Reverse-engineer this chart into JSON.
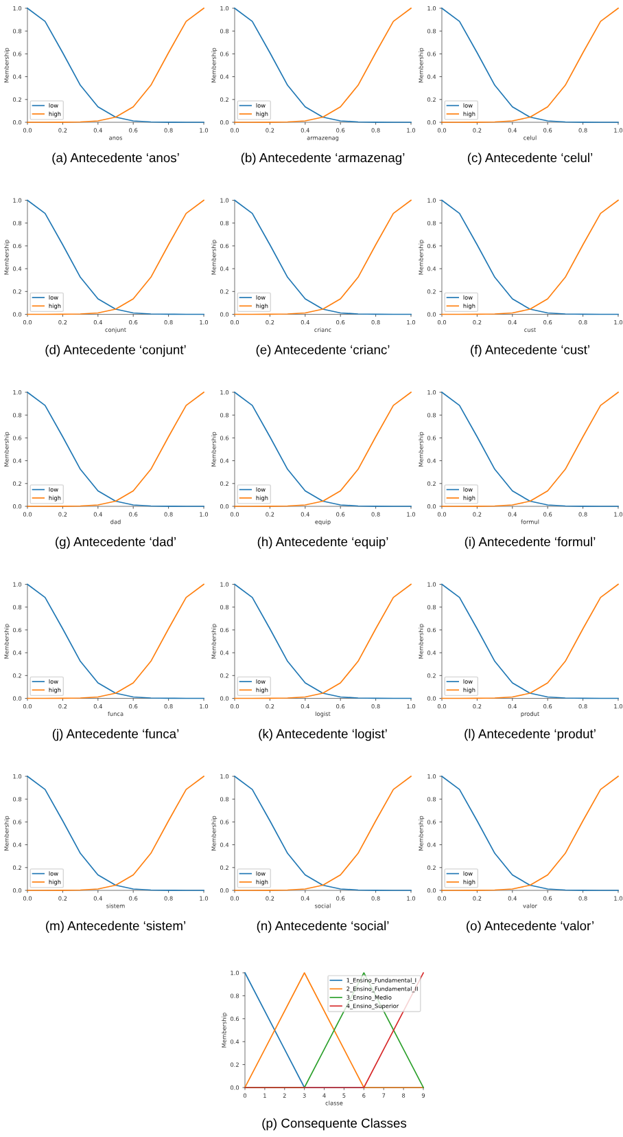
{
  "chart_data": [
    {
      "type": "line",
      "title": "(a) Antecedente ‘anos’",
      "xlabel": "anos",
      "ylabel": "Membership",
      "x": [
        0,
        0.1,
        0.2,
        0.3,
        0.4,
        0.5,
        0.6,
        0.7,
        0.8,
        0.9,
        1.0
      ],
      "xlim": [
        0,
        1
      ],
      "ylim": [
        0,
        1
      ],
      "xticks": [
        {
          "value": 0,
          "label": "0.0"
        },
        {
          "value": 0.2,
          "label": "0.2"
        },
        {
          "value": 0.4,
          "label": "0.4"
        },
        {
          "value": 0.6,
          "label": "0.6"
        },
        {
          "value": 0.8,
          "label": "0.8"
        },
        {
          "value": 1,
          "label": "1.0"
        }
      ],
      "yticks": [
        {
          "value": 0,
          "label": "0.0"
        },
        {
          "value": 0.2,
          "label": "0.2"
        },
        {
          "value": 0.4,
          "label": "0.4"
        },
        {
          "value": 0.6,
          "label": "0.6"
        },
        {
          "value": 0.8,
          "label": "0.8"
        },
        {
          "value": 1,
          "label": "1.0"
        }
      ],
      "legend": "bottom left",
      "grid": false,
      "series": [
        {
          "name": "low",
          "color": "#1f77b4",
          "values": [
            1.0,
            0.885,
            0.61,
            0.325,
            0.135,
            0.045,
            0.012,
            0.003,
            0.001,
            0,
            0
          ]
        },
        {
          "name": "high",
          "color": "#ff7f0e",
          "values": [
            0,
            0,
            0.001,
            0.003,
            0.012,
            0.045,
            0.135,
            0.325,
            0.61,
            0.885,
            1.0
          ]
        }
      ]
    },
    {
      "type": "line",
      "title": "(b) Antecedente ‘armazenag’",
      "xlabel": "armazenag",
      "ylabel": "Membership",
      "x": [
        0,
        0.1,
        0.2,
        0.3,
        0.4,
        0.5,
        0.6,
        0.7,
        0.8,
        0.9,
        1.0
      ],
      "xlim": [
        0,
        1
      ],
      "ylim": [
        0,
        1
      ],
      "xticks": [
        {
          "value": 0,
          "label": "0.0"
        },
        {
          "value": 0.2,
          "label": "0.2"
        },
        {
          "value": 0.4,
          "label": "0.4"
        },
        {
          "value": 0.6,
          "label": "0.6"
        },
        {
          "value": 0.8,
          "label": "0.8"
        },
        {
          "value": 1,
          "label": "1.0"
        }
      ],
      "yticks": [
        {
          "value": 0,
          "label": "0.0"
        },
        {
          "value": 0.2,
          "label": "0.2"
        },
        {
          "value": 0.4,
          "label": "0.4"
        },
        {
          "value": 0.6,
          "label": "0.6"
        },
        {
          "value": 0.8,
          "label": "0.8"
        },
        {
          "value": 1,
          "label": "1.0"
        }
      ],
      "legend": "bottom left",
      "grid": false,
      "series": [
        {
          "name": "low",
          "color": "#1f77b4",
          "values": [
            1.0,
            0.885,
            0.61,
            0.325,
            0.135,
            0.045,
            0.012,
            0.003,
            0.001,
            0,
            0
          ]
        },
        {
          "name": "high",
          "color": "#ff7f0e",
          "values": [
            0,
            0,
            0.001,
            0.003,
            0.012,
            0.045,
            0.135,
            0.325,
            0.61,
            0.885,
            1.0
          ]
        }
      ]
    },
    {
      "type": "line",
      "title": "(c) Antecedente ‘celul’",
      "xlabel": "celul",
      "ylabel": "Membership",
      "x": [
        0,
        0.1,
        0.2,
        0.3,
        0.4,
        0.5,
        0.6,
        0.7,
        0.8,
        0.9,
        1.0
      ],
      "xlim": [
        0,
        1
      ],
      "ylim": [
        0,
        1
      ],
      "xticks": [
        {
          "value": 0,
          "label": "0.0"
        },
        {
          "value": 0.2,
          "label": "0.2"
        },
        {
          "value": 0.4,
          "label": "0.4"
        },
        {
          "value": 0.6,
          "label": "0.6"
        },
        {
          "value": 0.8,
          "label": "0.8"
        },
        {
          "value": 1,
          "label": "1.0"
        }
      ],
      "yticks": [
        {
          "value": 0,
          "label": "0.0"
        },
        {
          "value": 0.2,
          "label": "0.2"
        },
        {
          "value": 0.4,
          "label": "0.4"
        },
        {
          "value": 0.6,
          "label": "0.6"
        },
        {
          "value": 0.8,
          "label": "0.8"
        },
        {
          "value": 1,
          "label": "1.0"
        }
      ],
      "legend": "bottom left",
      "grid": false,
      "series": [
        {
          "name": "low",
          "color": "#1f77b4",
          "values": [
            1.0,
            0.885,
            0.61,
            0.325,
            0.135,
            0.045,
            0.012,
            0.003,
            0.001,
            0,
            0
          ]
        },
        {
          "name": "high",
          "color": "#ff7f0e",
          "values": [
            0,
            0,
            0.001,
            0.003,
            0.012,
            0.045,
            0.135,
            0.325,
            0.61,
            0.885,
            1.0
          ]
        }
      ]
    },
    {
      "type": "line",
      "title": "(d) Antecedente ‘conjunt’",
      "xlabel": "conjunt",
      "ylabel": "Membership",
      "x": [
        0,
        0.1,
        0.2,
        0.3,
        0.4,
        0.5,
        0.6,
        0.7,
        0.8,
        0.9,
        1.0
      ],
      "xlim": [
        0,
        1
      ],
      "ylim": [
        0,
        1
      ],
      "xticks": [
        {
          "value": 0,
          "label": "0.0"
        },
        {
          "value": 0.2,
          "label": "0.2"
        },
        {
          "value": 0.4,
          "label": "0.4"
        },
        {
          "value": 0.6,
          "label": "0.6"
        },
        {
          "value": 0.8,
          "label": "0.8"
        },
        {
          "value": 1,
          "label": "1.0"
        }
      ],
      "yticks": [
        {
          "value": 0,
          "label": "0.0"
        },
        {
          "value": 0.2,
          "label": "0.2"
        },
        {
          "value": 0.4,
          "label": "0.4"
        },
        {
          "value": 0.6,
          "label": "0.6"
        },
        {
          "value": 0.8,
          "label": "0.8"
        },
        {
          "value": 1,
          "label": "1.0"
        }
      ],
      "legend": "bottom left",
      "grid": false,
      "series": [
        {
          "name": "low",
          "color": "#1f77b4",
          "values": [
            1.0,
            0.885,
            0.61,
            0.325,
            0.135,
            0.045,
            0.012,
            0.003,
            0.001,
            0,
            0
          ]
        },
        {
          "name": "high",
          "color": "#ff7f0e",
          "values": [
            0,
            0,
            0.001,
            0.003,
            0.012,
            0.045,
            0.135,
            0.325,
            0.61,
            0.885,
            1.0
          ]
        }
      ]
    },
    {
      "type": "line",
      "title": "(e) Antecedente ‘crianc’",
      "xlabel": "crianc",
      "ylabel": "Membership",
      "x": [
        0,
        0.1,
        0.2,
        0.3,
        0.4,
        0.5,
        0.6,
        0.7,
        0.8,
        0.9,
        1.0
      ],
      "xlim": [
        0,
        1
      ],
      "ylim": [
        0,
        1
      ],
      "xticks": [
        {
          "value": 0,
          "label": "0.0"
        },
        {
          "value": 0.2,
          "label": "0.2"
        },
        {
          "value": 0.4,
          "label": "0.4"
        },
        {
          "value": 0.6,
          "label": "0.6"
        },
        {
          "value": 0.8,
          "label": "0.8"
        },
        {
          "value": 1,
          "label": "1.0"
        }
      ],
      "yticks": [
        {
          "value": 0,
          "label": "0.0"
        },
        {
          "value": 0.2,
          "label": "0.2"
        },
        {
          "value": 0.4,
          "label": "0.4"
        },
        {
          "value": 0.6,
          "label": "0.6"
        },
        {
          "value": 0.8,
          "label": "0.8"
        },
        {
          "value": 1,
          "label": "1.0"
        }
      ],
      "legend": "bottom left",
      "grid": false,
      "series": [
        {
          "name": "low",
          "color": "#1f77b4",
          "values": [
            1.0,
            0.885,
            0.61,
            0.325,
            0.135,
            0.045,
            0.012,
            0.003,
            0.001,
            0,
            0
          ]
        },
        {
          "name": "high",
          "color": "#ff7f0e",
          "values": [
            0,
            0,
            0.001,
            0.003,
            0.012,
            0.045,
            0.135,
            0.325,
            0.61,
            0.885,
            1.0
          ]
        }
      ]
    },
    {
      "type": "line",
      "title": "(f) Antecedente ‘cust’",
      "xlabel": "cust",
      "ylabel": "Membership",
      "x": [
        0,
        0.1,
        0.2,
        0.3,
        0.4,
        0.5,
        0.6,
        0.7,
        0.8,
        0.9,
        1.0
      ],
      "xlim": [
        0,
        1
      ],
      "ylim": [
        0,
        1
      ],
      "xticks": [
        {
          "value": 0,
          "label": "0.0"
        },
        {
          "value": 0.2,
          "label": "0.2"
        },
        {
          "value": 0.4,
          "label": "0.4"
        },
        {
          "value": 0.6,
          "label": "0.6"
        },
        {
          "value": 0.8,
          "label": "0.8"
        },
        {
          "value": 1,
          "label": "1.0"
        }
      ],
      "yticks": [
        {
          "value": 0,
          "label": "0.0"
        },
        {
          "value": 0.2,
          "label": "0.2"
        },
        {
          "value": 0.4,
          "label": "0.4"
        },
        {
          "value": 0.6,
          "label": "0.6"
        },
        {
          "value": 0.8,
          "label": "0.8"
        },
        {
          "value": 1,
          "label": "1.0"
        }
      ],
      "legend": "bottom left",
      "grid": false,
      "series": [
        {
          "name": "low",
          "color": "#1f77b4",
          "values": [
            1.0,
            0.885,
            0.61,
            0.325,
            0.135,
            0.045,
            0.012,
            0.003,
            0.001,
            0,
            0
          ]
        },
        {
          "name": "high",
          "color": "#ff7f0e",
          "values": [
            0,
            0,
            0.001,
            0.003,
            0.012,
            0.045,
            0.135,
            0.325,
            0.61,
            0.885,
            1.0
          ]
        }
      ]
    },
    {
      "type": "line",
      "title": "(g) Antecedente ‘dad’",
      "xlabel": "dad",
      "ylabel": "Membership",
      "x": [
        0,
        0.1,
        0.2,
        0.3,
        0.4,
        0.5,
        0.6,
        0.7,
        0.8,
        0.9,
        1.0
      ],
      "xlim": [
        0,
        1
      ],
      "ylim": [
        0,
        1
      ],
      "xticks": [
        {
          "value": 0,
          "label": "0.0"
        },
        {
          "value": 0.2,
          "label": "0.2"
        },
        {
          "value": 0.4,
          "label": "0.4"
        },
        {
          "value": 0.6,
          "label": "0.6"
        },
        {
          "value": 0.8,
          "label": "0.8"
        },
        {
          "value": 1,
          "label": "1.0"
        }
      ],
      "yticks": [
        {
          "value": 0,
          "label": "0.0"
        },
        {
          "value": 0.2,
          "label": "0.2"
        },
        {
          "value": 0.4,
          "label": "0.4"
        },
        {
          "value": 0.6,
          "label": "0.6"
        },
        {
          "value": 0.8,
          "label": "0.8"
        },
        {
          "value": 1,
          "label": "1.0"
        }
      ],
      "legend": "bottom left",
      "grid": false,
      "series": [
        {
          "name": "low",
          "color": "#1f77b4",
          "values": [
            1.0,
            0.885,
            0.61,
            0.325,
            0.135,
            0.045,
            0.012,
            0.003,
            0.001,
            0,
            0
          ]
        },
        {
          "name": "high",
          "color": "#ff7f0e",
          "values": [
            0,
            0,
            0.001,
            0.003,
            0.012,
            0.045,
            0.135,
            0.325,
            0.61,
            0.885,
            1.0
          ]
        }
      ]
    },
    {
      "type": "line",
      "title": "(h) Antecedente ‘equip’",
      "xlabel": "equip",
      "ylabel": "Membership",
      "x": [
        0,
        0.1,
        0.2,
        0.3,
        0.4,
        0.5,
        0.6,
        0.7,
        0.8,
        0.9,
        1.0
      ],
      "xlim": [
        0,
        1
      ],
      "ylim": [
        0,
        1
      ],
      "xticks": [
        {
          "value": 0,
          "label": "0.0"
        },
        {
          "value": 0.2,
          "label": "0.2"
        },
        {
          "value": 0.4,
          "label": "0.4"
        },
        {
          "value": 0.6,
          "label": "0.6"
        },
        {
          "value": 0.8,
          "label": "0.8"
        },
        {
          "value": 1,
          "label": "1.0"
        }
      ],
      "yticks": [
        {
          "value": 0,
          "label": "0.0"
        },
        {
          "value": 0.2,
          "label": "0.2"
        },
        {
          "value": 0.4,
          "label": "0.4"
        },
        {
          "value": 0.6,
          "label": "0.6"
        },
        {
          "value": 0.8,
          "label": "0.8"
        },
        {
          "value": 1,
          "label": "1.0"
        }
      ],
      "legend": "bottom left",
      "grid": false,
      "series": [
        {
          "name": "low",
          "color": "#1f77b4",
          "values": [
            1.0,
            0.885,
            0.61,
            0.325,
            0.135,
            0.045,
            0.012,
            0.003,
            0.001,
            0,
            0
          ]
        },
        {
          "name": "high",
          "color": "#ff7f0e",
          "values": [
            0,
            0,
            0.001,
            0.003,
            0.012,
            0.045,
            0.135,
            0.325,
            0.61,
            0.885,
            1.0
          ]
        }
      ]
    },
    {
      "type": "line",
      "title": "(i) Antecedente ‘formul’",
      "xlabel": "formul",
      "ylabel": "Membership",
      "x": [
        0,
        0.1,
        0.2,
        0.3,
        0.4,
        0.5,
        0.6,
        0.7,
        0.8,
        0.9,
        1.0
      ],
      "xlim": [
        0,
        1
      ],
      "ylim": [
        0,
        1
      ],
      "xticks": [
        {
          "value": 0,
          "label": "0.0"
        },
        {
          "value": 0.2,
          "label": "0.2"
        },
        {
          "value": 0.4,
          "label": "0.4"
        },
        {
          "value": 0.6,
          "label": "0.6"
        },
        {
          "value": 0.8,
          "label": "0.8"
        },
        {
          "value": 1,
          "label": "1.0"
        }
      ],
      "yticks": [
        {
          "value": 0,
          "label": "0.0"
        },
        {
          "value": 0.2,
          "label": "0.2"
        },
        {
          "value": 0.4,
          "label": "0.4"
        },
        {
          "value": 0.6,
          "label": "0.6"
        },
        {
          "value": 0.8,
          "label": "0.8"
        },
        {
          "value": 1,
          "label": "1.0"
        }
      ],
      "legend": "bottom left",
      "grid": false,
      "series": [
        {
          "name": "low",
          "color": "#1f77b4",
          "values": [
            1.0,
            0.885,
            0.61,
            0.325,
            0.135,
            0.045,
            0.012,
            0.003,
            0.001,
            0,
            0
          ]
        },
        {
          "name": "high",
          "color": "#ff7f0e",
          "values": [
            0,
            0,
            0.001,
            0.003,
            0.012,
            0.045,
            0.135,
            0.325,
            0.61,
            0.885,
            1.0
          ]
        }
      ]
    },
    {
      "type": "line",
      "title": "(j) Antecedente ‘funca’",
      "xlabel": "funca",
      "ylabel": "Membership",
      "x": [
        0,
        0.1,
        0.2,
        0.3,
        0.4,
        0.5,
        0.6,
        0.7,
        0.8,
        0.9,
        1.0
      ],
      "xlim": [
        0,
        1
      ],
      "ylim": [
        0,
        1
      ],
      "xticks": [
        {
          "value": 0,
          "label": "0.0"
        },
        {
          "value": 0.2,
          "label": "0.2"
        },
        {
          "value": 0.4,
          "label": "0.4"
        },
        {
          "value": 0.6,
          "label": "0.6"
        },
        {
          "value": 0.8,
          "label": "0.8"
        },
        {
          "value": 1,
          "label": "1.0"
        }
      ],
      "yticks": [
        {
          "value": 0,
          "label": "0.0"
        },
        {
          "value": 0.2,
          "label": "0.2"
        },
        {
          "value": 0.4,
          "label": "0.4"
        },
        {
          "value": 0.6,
          "label": "0.6"
        },
        {
          "value": 0.8,
          "label": "0.8"
        },
        {
          "value": 1,
          "label": "1.0"
        }
      ],
      "legend": "bottom left",
      "grid": false,
      "series": [
        {
          "name": "low",
          "color": "#1f77b4",
          "values": [
            1.0,
            0.885,
            0.61,
            0.325,
            0.135,
            0.045,
            0.012,
            0.003,
            0.001,
            0,
            0
          ]
        },
        {
          "name": "high",
          "color": "#ff7f0e",
          "values": [
            0,
            0,
            0.001,
            0.003,
            0.012,
            0.045,
            0.135,
            0.325,
            0.61,
            0.885,
            1.0
          ]
        }
      ]
    },
    {
      "type": "line",
      "title": "(k) Antecedente ‘logist’",
      "xlabel": "logist",
      "ylabel": "Membership",
      "x": [
        0,
        0.1,
        0.2,
        0.3,
        0.4,
        0.5,
        0.6,
        0.7,
        0.8,
        0.9,
        1.0
      ],
      "xlim": [
        0,
        1
      ],
      "ylim": [
        0,
        1
      ],
      "xticks": [
        {
          "value": 0,
          "label": "0.0"
        },
        {
          "value": 0.2,
          "label": "0.2"
        },
        {
          "value": 0.4,
          "label": "0.4"
        },
        {
          "value": 0.6,
          "label": "0.6"
        },
        {
          "value": 0.8,
          "label": "0.8"
        },
        {
          "value": 1,
          "label": "1.0"
        }
      ],
      "yticks": [
        {
          "value": 0,
          "label": "0.0"
        },
        {
          "value": 0.2,
          "label": "0.2"
        },
        {
          "value": 0.4,
          "label": "0.4"
        },
        {
          "value": 0.6,
          "label": "0.6"
        },
        {
          "value": 0.8,
          "label": "0.8"
        },
        {
          "value": 1,
          "label": "1.0"
        }
      ],
      "legend": "bottom left",
      "grid": false,
      "series": [
        {
          "name": "low",
          "color": "#1f77b4",
          "values": [
            1.0,
            0.885,
            0.61,
            0.325,
            0.135,
            0.045,
            0.012,
            0.003,
            0.001,
            0,
            0
          ]
        },
        {
          "name": "high",
          "color": "#ff7f0e",
          "values": [
            0,
            0,
            0.001,
            0.003,
            0.012,
            0.045,
            0.135,
            0.325,
            0.61,
            0.885,
            1.0
          ]
        }
      ]
    },
    {
      "type": "line",
      "title": "(l) Antecedente ‘produt’",
      "xlabel": "produt",
      "ylabel": "Membership",
      "x": [
        0,
        0.1,
        0.2,
        0.3,
        0.4,
        0.5,
        0.6,
        0.7,
        0.8,
        0.9,
        1.0
      ],
      "xlim": [
        0,
        1
      ],
      "ylim": [
        0,
        1
      ],
      "xticks": [
        {
          "value": 0,
          "label": "0.0"
        },
        {
          "value": 0.2,
          "label": "0.2"
        },
        {
          "value": 0.4,
          "label": "0.4"
        },
        {
          "value": 0.6,
          "label": "0.6"
        },
        {
          "value": 0.8,
          "label": "0.8"
        },
        {
          "value": 1,
          "label": "1.0"
        }
      ],
      "yticks": [
        {
          "value": 0,
          "label": "0.0"
        },
        {
          "value": 0.2,
          "label": "0.2"
        },
        {
          "value": 0.4,
          "label": "0.4"
        },
        {
          "value": 0.6,
          "label": "0.6"
        },
        {
          "value": 0.8,
          "label": "0.8"
        },
        {
          "value": 1,
          "label": "1.0"
        }
      ],
      "legend": "bottom left",
      "grid": false,
      "series": [
        {
          "name": "low",
          "color": "#1f77b4",
          "values": [
            1.0,
            0.885,
            0.61,
            0.325,
            0.135,
            0.045,
            0.012,
            0.003,
            0.001,
            0,
            0
          ]
        },
        {
          "name": "high",
          "color": "#ff7f0e",
          "values": [
            0,
            0,
            0.001,
            0.003,
            0.012,
            0.045,
            0.135,
            0.325,
            0.61,
            0.885,
            1.0
          ]
        }
      ]
    },
    {
      "type": "line",
      "title": "(m) Antecedente ‘sistem’",
      "xlabel": "sistem",
      "ylabel": "Membership",
      "x": [
        0,
        0.1,
        0.2,
        0.3,
        0.4,
        0.5,
        0.6,
        0.7,
        0.8,
        0.9,
        1.0
      ],
      "xlim": [
        0,
        1
      ],
      "ylim": [
        0,
        1
      ],
      "xticks": [
        {
          "value": 0,
          "label": "0.0"
        },
        {
          "value": 0.2,
          "label": "0.2"
        },
        {
          "value": 0.4,
          "label": "0.4"
        },
        {
          "value": 0.6,
          "label": "0.6"
        },
        {
          "value": 0.8,
          "label": "0.8"
        },
        {
          "value": 1,
          "label": "1.0"
        }
      ],
      "yticks": [
        {
          "value": 0,
          "label": "0.0"
        },
        {
          "value": 0.2,
          "label": "0.2"
        },
        {
          "value": 0.4,
          "label": "0.4"
        },
        {
          "value": 0.6,
          "label": "0.6"
        },
        {
          "value": 0.8,
          "label": "0.8"
        },
        {
          "value": 1,
          "label": "1.0"
        }
      ],
      "legend": "bottom left",
      "grid": false,
      "series": [
        {
          "name": "low",
          "color": "#1f77b4",
          "values": [
            1.0,
            0.885,
            0.61,
            0.325,
            0.135,
            0.045,
            0.012,
            0.003,
            0.001,
            0,
            0
          ]
        },
        {
          "name": "high",
          "color": "#ff7f0e",
          "values": [
            0,
            0,
            0.001,
            0.003,
            0.012,
            0.045,
            0.135,
            0.325,
            0.61,
            0.885,
            1.0
          ]
        }
      ]
    },
    {
      "type": "line",
      "title": "(n) Antecedente ‘social’",
      "xlabel": "social",
      "ylabel": "Membership",
      "x": [
        0,
        0.1,
        0.2,
        0.3,
        0.4,
        0.5,
        0.6,
        0.7,
        0.8,
        0.9,
        1.0
      ],
      "xlim": [
        0,
        1
      ],
      "ylim": [
        0,
        1
      ],
      "xticks": [
        {
          "value": 0,
          "label": "0.0"
        },
        {
          "value": 0.2,
          "label": "0.2"
        },
        {
          "value": 0.4,
          "label": "0.4"
        },
        {
          "value": 0.6,
          "label": "0.6"
        },
        {
          "value": 0.8,
          "label": "0.8"
        },
        {
          "value": 1,
          "label": "1.0"
        }
      ],
      "yticks": [
        {
          "value": 0,
          "label": "0.0"
        },
        {
          "value": 0.2,
          "label": "0.2"
        },
        {
          "value": 0.4,
          "label": "0.4"
        },
        {
          "value": 0.6,
          "label": "0.6"
        },
        {
          "value": 0.8,
          "label": "0.8"
        },
        {
          "value": 1,
          "label": "1.0"
        }
      ],
      "legend": "bottom left",
      "grid": false,
      "series": [
        {
          "name": "low",
          "color": "#1f77b4",
          "values": [
            1.0,
            0.885,
            0.61,
            0.325,
            0.135,
            0.045,
            0.012,
            0.003,
            0.001,
            0,
            0
          ]
        },
        {
          "name": "high",
          "color": "#ff7f0e",
          "values": [
            0,
            0,
            0.001,
            0.003,
            0.012,
            0.045,
            0.135,
            0.325,
            0.61,
            0.885,
            1.0
          ]
        }
      ]
    },
    {
      "type": "line",
      "title": "(o) Antecedente ‘valor’",
      "xlabel": "valor",
      "ylabel": "Membership",
      "x": [
        0,
        0.1,
        0.2,
        0.3,
        0.4,
        0.5,
        0.6,
        0.7,
        0.8,
        0.9,
        1.0
      ],
      "xlim": [
        0,
        1
      ],
      "ylim": [
        0,
        1
      ],
      "xticks": [
        {
          "value": 0,
          "label": "0.0"
        },
        {
          "value": 0.2,
          "label": "0.2"
        },
        {
          "value": 0.4,
          "label": "0.4"
        },
        {
          "value": 0.6,
          "label": "0.6"
        },
        {
          "value": 0.8,
          "label": "0.8"
        },
        {
          "value": 1,
          "label": "1.0"
        }
      ],
      "yticks": [
        {
          "value": 0,
          "label": "0.0"
        },
        {
          "value": 0.2,
          "label": "0.2"
        },
        {
          "value": 0.4,
          "label": "0.4"
        },
        {
          "value": 0.6,
          "label": "0.6"
        },
        {
          "value": 0.8,
          "label": "0.8"
        },
        {
          "value": 1,
          "label": "1.0"
        }
      ],
      "legend": "bottom left",
      "grid": false,
      "series": [
        {
          "name": "low",
          "color": "#1f77b4",
          "values": [
            1.0,
            0.885,
            0.61,
            0.325,
            0.135,
            0.045,
            0.012,
            0.003,
            0.001,
            0,
            0
          ]
        },
        {
          "name": "high",
          "color": "#ff7f0e",
          "values": [
            0,
            0,
            0.001,
            0.003,
            0.012,
            0.045,
            0.135,
            0.325,
            0.61,
            0.885,
            1.0
          ]
        }
      ]
    },
    {
      "type": "line",
      "title": "(p) Consequente Classes",
      "xlabel": "classe",
      "ylabel": "Membership",
      "xlim": [
        0,
        9
      ],
      "ylim": [
        0,
        1
      ],
      "xticks": [
        0,
        1,
        2,
        3,
        4,
        5,
        6,
        7,
        8,
        9
      ],
      "yticks": [
        {
          "value": 0,
          "label": "0.0"
        },
        {
          "value": 0.2,
          "label": "0.2"
        },
        {
          "value": 0.4,
          "label": "0.4"
        },
        {
          "value": 0.6,
          "label": "0.6"
        },
        {
          "value": 0.8,
          "label": "0.8"
        },
        {
          "value": 1,
          "label": "1.0"
        }
      ],
      "legend": "top right",
      "grid": false,
      "series": [
        {
          "name": "1_Ensino_Fundamental_I",
          "color": "#1f77b4",
          "x": [
            0,
            3,
            9
          ],
          "values": [
            1,
            0,
            0
          ]
        },
        {
          "name": "2_Ensino_Fundamental_II",
          "color": "#ff7f0e",
          "x": [
            0,
            3,
            6,
            9
          ],
          "values": [
            0,
            1,
            0,
            0
          ]
        },
        {
          "name": "3_Ensino_Medio",
          "color": "#2ca02c",
          "x": [
            0,
            3,
            6,
            9
          ],
          "values": [
            0,
            0,
            1,
            0
          ]
        },
        {
          "name": "4_Ensino_Superior",
          "color": "#d62728",
          "x": [
            0,
            6,
            9
          ],
          "values": [
            0,
            0,
            1
          ]
        }
      ]
    }
  ]
}
